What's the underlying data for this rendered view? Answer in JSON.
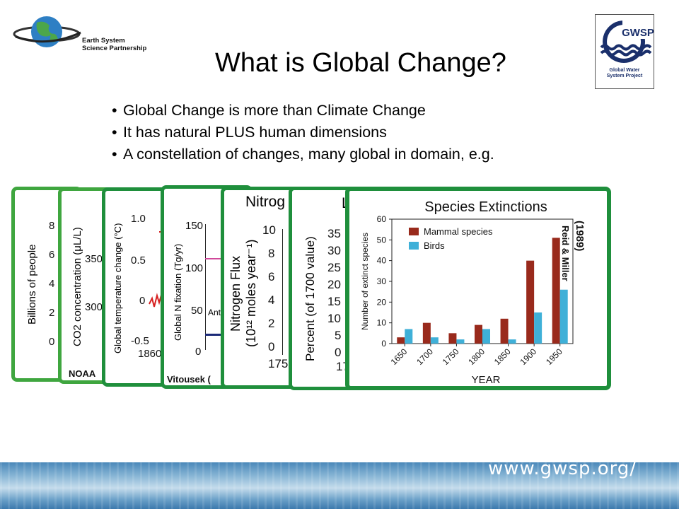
{
  "header": {
    "esp_line1": "Earth System",
    "esp_line2": "Science Partnership",
    "gwsp_acronym": "GWSP",
    "gwsp_line1": "Global Water",
    "gwsp_line2": "System Project"
  },
  "title": "What is Global Change?",
  "bullets": [
    "Global Change is more than Climate Change",
    "It has natural PLUS human dimensions",
    "A constellation of changes, many global in domain, e.g."
  ],
  "cards": {
    "population": {
      "ylabel": "Billions of people",
      "ticks": [
        "8",
        "6",
        "4",
        "2",
        "0"
      ]
    },
    "co2": {
      "ylabel": "CO2 concentration (μL/L)",
      "ticks": [
        "350",
        "300"
      ],
      "source": "NOAA"
    },
    "temperature": {
      "ylabel": "Global temperature change (°C)",
      "ticks": [
        "1.0",
        "0.5",
        "0",
        "-0.5"
      ],
      "xtick": "1860"
    },
    "nfix": {
      "ylabel": "Global N fixation (Tg/yr)",
      "ticks": [
        "150",
        "100",
        "50",
        "0"
      ],
      "annotation": "Ant",
      "source": "Vitousek ("
    },
    "nflux": {
      "title": "Nitrog",
      "ylabel_line1": "Nitrogen Flux",
      "ylabel_line2": "(10¹² moles year⁻¹)",
      "ticks": [
        "10",
        "8",
        "6",
        "4",
        "2",
        "0"
      ],
      "xtick": "175"
    },
    "land": {
      "title": "L",
      "ylabel": "Percent (of 1700 value)",
      "ticks": [
        "35",
        "30",
        "25",
        "20",
        "15",
        "10",
        "5",
        "0"
      ],
      "xtick": "17"
    }
  },
  "citation": {
    "line1": "Reid & Miller",
    "line2": "(1989)"
  },
  "footer": {
    "url": "www.gwsp.org/"
  },
  "colors": {
    "mammal": "#992a1c",
    "birds": "#3fb0d8",
    "card_border": "#1f8f3c"
  },
  "chart_data": {
    "type": "bar",
    "title": "Species Extinctions",
    "xlabel": "YEAR",
    "ylabel": "Number of extinct species",
    "categories": [
      "1650",
      "1700",
      "1750",
      "1800",
      "1850",
      "1900",
      "1950"
    ],
    "series": [
      {
        "name": "Mammal species",
        "values": [
          3,
          10,
          5,
          9,
          12,
          40,
          51
        ]
      },
      {
        "name": "Birds",
        "values": [
          7,
          3,
          2,
          7,
          2,
          15,
          26
        ]
      }
    ],
    "yticks": [
      0,
      10,
      20,
      30,
      40,
      50,
      60
    ],
    "ylim": [
      0,
      60
    ],
    "legend": "top-left",
    "grid": false
  }
}
